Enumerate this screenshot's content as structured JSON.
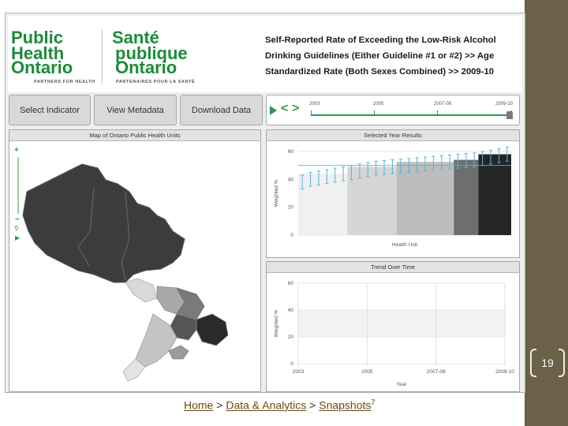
{
  "header": {
    "logo_en": [
      "Public",
      "Health",
      "Ontario"
    ],
    "logo_fr": [
      "Santé",
      "publique",
      "Ontario"
    ],
    "partners_en": "PARTNERS FOR HEALTH",
    "partners_fr": "PARTENAIRES POUR LA SANTÉ",
    "title": "Self-Reported Rate of Exceeding the Low-Risk Alcohol Drinking Guidelines (Either Guideline #1 or #2) >> Age Standardized Rate (Both Sexes Combined) >> 2009-10"
  },
  "toolbar": {
    "select_indicator": "Select Indicator",
    "view_metadata": "View Metadata",
    "download_data": "Download Data"
  },
  "timeline": {
    "years": [
      "2003",
      "2005",
      "2007-08",
      "2009-10"
    ],
    "selected": "2009-10"
  },
  "map_panel": {
    "title": "Map of Ontario Public Health Units",
    "zoom_in": "+",
    "zoom_out": "−"
  },
  "results_panel": {
    "title": "Selected Year Results"
  },
  "trend_panel": {
    "title": "Trend Over Time"
  },
  "chart_data": [
    {
      "type": "bar",
      "title": "Selected Year Results",
      "xlabel": "Health Unit",
      "ylabel": "Weighted %",
      "ylim": [
        0,
        60
      ],
      "yticks": [
        0,
        20,
        40,
        60
      ],
      "values": [
        38,
        40,
        41,
        42,
        43,
        44,
        45,
        46,
        47,
        48,
        48.5,
        49,
        49.5,
        50,
        50.5,
        51,
        51.5,
        52,
        52.5,
        53,
        53.5,
        54,
        55,
        56,
        57,
        58
      ],
      "errors": [
        5,
        5,
        5,
        5,
        5,
        5,
        5,
        5,
        5,
        5,
        5,
        5,
        5,
        5,
        5,
        5,
        5,
        5,
        5,
        5,
        5,
        5,
        5,
        5,
        5,
        5
      ],
      "band_colors": [
        "#f0f0f0",
        "#d6d6d6",
        "#bdbdbd",
        "#6e6e6e",
        "#252525"
      ],
      "band_breaks": [
        0,
        6,
        12,
        19,
        22,
        26
      ],
      "line_value": 50
    },
    {
      "type": "line",
      "title": "Trend Over Time",
      "xlabel": "Year",
      "ylabel": "Weighted %",
      "categories": [
        "2003",
        "2005",
        "2007-08",
        "2009-10"
      ],
      "ylim": [
        0,
        60
      ],
      "yticks": [
        0,
        20,
        40,
        60
      ],
      "series": []
    }
  ],
  "page_number": "19",
  "cut_char": "9",
  "footer": {
    "home": "Home",
    "sep1": " > ",
    "data_analytics": "Data & Analytics",
    "sep2": " > ",
    "snapshots": "Snapshots",
    "footnote": "7"
  },
  "colors": {
    "brand_green": "#1d8a3a",
    "right_bar": "#6b6048"
  }
}
